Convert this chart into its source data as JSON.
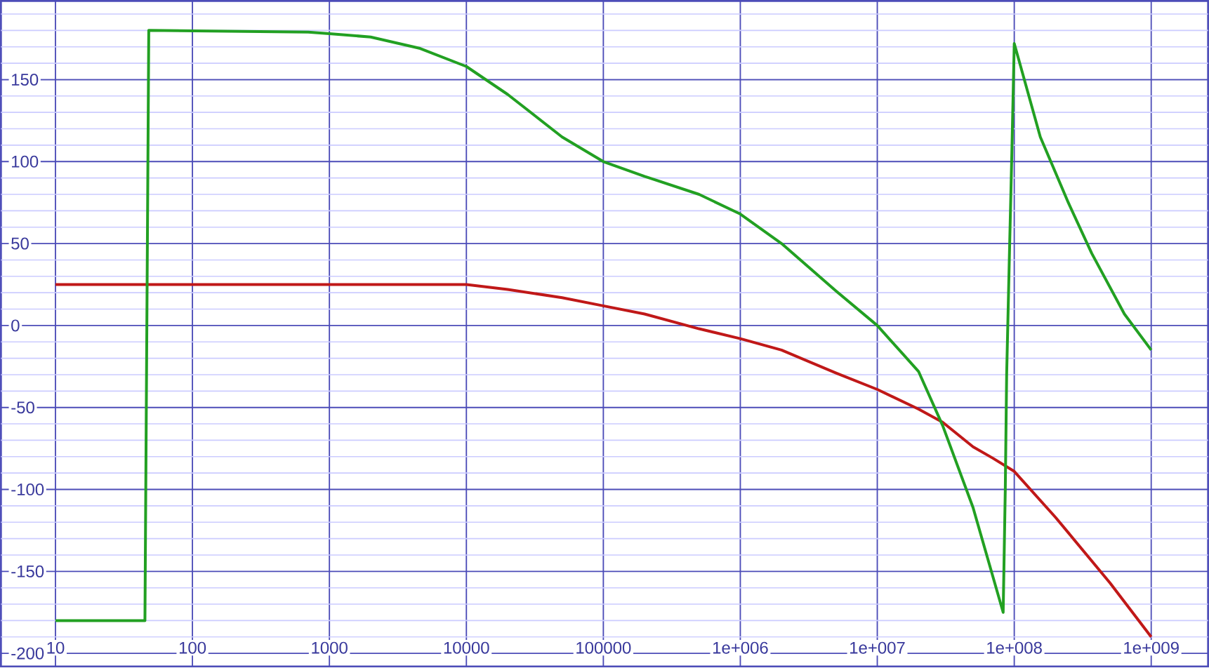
{
  "chart_data": {
    "type": "line",
    "log": "x",
    "grid": true,
    "marker": "none",
    "line_style": "solid",
    "xlim": [
      4,
      2600000000.0
    ],
    "ylim": [
      -208,
      198
    ],
    "xticks": [
      10,
      100,
      1000,
      10000,
      100000,
      {
        "value": 1000000,
        "label": "1e+006"
      },
      {
        "value": 10000000,
        "label": "1e+007"
      },
      {
        "value": 100000000,
        "label": "1e+008"
      },
      {
        "value": 1000000000,
        "label": "1e+009"
      }
    ],
    "yticks": [
      -200,
      {
        "value": -190,
        "label": null
      },
      {
        "value": -180,
        "label": null
      },
      {
        "value": -170,
        "label": null
      },
      {
        "value": -160,
        "label": null
      },
      -150,
      {
        "value": -140,
        "label": null
      },
      {
        "value": -130,
        "label": null
      },
      {
        "value": -120,
        "label": null
      },
      {
        "value": -110,
        "label": null
      },
      -100,
      {
        "value": -90,
        "label": null
      },
      {
        "value": -80,
        "label": null
      },
      {
        "value": -70,
        "label": null
      },
      {
        "value": -60,
        "label": null
      },
      -50,
      {
        "value": -40,
        "label": null
      },
      {
        "value": -30,
        "label": null
      },
      {
        "value": -20,
        "label": null
      },
      {
        "value": -10,
        "label": null
      },
      0,
      {
        "value": 10,
        "label": null
      },
      {
        "value": 20,
        "label": null
      },
      {
        "value": 30,
        "label": null
      },
      {
        "value": 40,
        "label": null
      },
      50,
      {
        "value": 60,
        "label": null
      },
      {
        "value": 70,
        "label": null
      },
      {
        "value": 80,
        "label": null
      },
      {
        "value": 90,
        "label": null
      },
      100,
      {
        "value": 110,
        "label": null
      },
      {
        "value": 120,
        "label": null
      },
      {
        "value": 130,
        "label": null
      },
      {
        "value": 140,
        "label": null
      },
      150,
      {
        "value": 160,
        "label": null
      },
      {
        "value": 170,
        "label": null
      },
      {
        "value": 180,
        "label": null
      },
      {
        "value": 190,
        "label": null
      }
    ],
    "series": [
      {
        "color": "#c01818",
        "x": [
          10,
          1000,
          5000,
          10000,
          20000,
          50000,
          100000,
          200000,
          500000,
          1000000,
          2000000,
          5000000,
          10000000,
          20000000,
          30000000,
          50000000,
          70000000,
          100000000,
          200000000,
          500000000,
          1000000000
        ],
        "values": [
          25,
          25,
          25,
          25,
          22,
          17,
          12,
          7,
          -2,
          -8,
          -15,
          -29,
          -39,
          -51,
          -59,
          -74,
          -81,
          -89,
          -117,
          -157,
          -190
        ]
      },
      {
        "color": "#22a022",
        "x": [
          10,
          45,
          48,
          700,
          1000,
          2000,
          4600,
          10000,
          20000,
          50000,
          100000,
          200000,
          500000,
          1000000,
          2000000,
          5000000,
          10000000,
          20000000,
          30000000,
          50000000,
          83000000,
          86000000,
          88000000,
          92000000,
          96000000,
          100000000,
          155000000,
          248000000,
          368000000,
          637000000,
          1000000000
        ],
        "values": [
          -180,
          -180,
          180,
          179,
          178,
          176,
          169,
          158,
          141,
          115,
          100,
          91,
          80,
          68,
          50,
          21,
          0,
          -28,
          -61,
          -111,
          -175,
          -100,
          -30,
          40,
          105,
          172,
          115,
          75,
          44,
          7,
          -15
        ]
      }
    ]
  }
}
